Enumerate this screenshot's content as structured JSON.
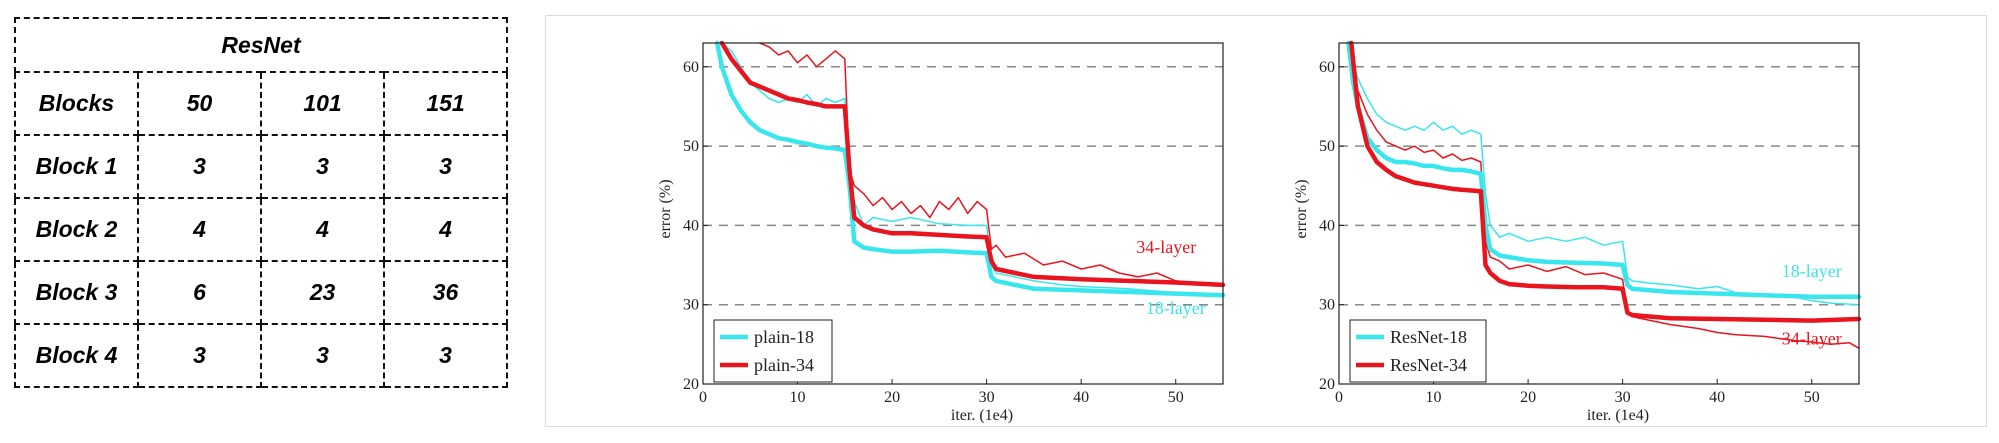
{
  "table": {
    "title": "ResNet",
    "header": [
      "Blocks",
      "50",
      "101",
      "151"
    ],
    "rows": [
      [
        "Block 1",
        "3",
        "3",
        "3"
      ],
      [
        "Block 2",
        "4",
        "4",
        "4"
      ],
      [
        "Block 3",
        "6",
        "23",
        "36"
      ],
      [
        "Block 4",
        "3",
        "3",
        "3"
      ]
    ]
  },
  "chart_data": [
    {
      "type": "line",
      "xlabel": "iter. (1e4)",
      "ylabel": "error (%)",
      "xlim": [
        0,
        55
      ],
      "ylim": [
        20,
        63
      ],
      "xticks": [
        0,
        10,
        20,
        30,
        40,
        50
      ],
      "yticks": [
        20,
        30,
        40,
        50,
        60
      ],
      "grid": "dashed horizontal at 30, 40, 50, 60",
      "legend_position": "bottom-left",
      "annotations": [
        {
          "text": "34-layer",
          "x": 49,
          "y": 36.5,
          "color": "#e8141e"
        },
        {
          "text": "18-layer",
          "x": 50,
          "y": 28.8,
          "color": "#39e6ee"
        }
      ],
      "series": [
        {
          "name": "plain-18",
          "color": "#39e6ee",
          "style": "thick",
          "x": [
            1.5,
            2,
            3,
            4,
            5,
            6,
            7,
            8,
            9,
            10,
            11,
            12,
            13,
            14,
            15,
            15.5,
            16,
            17,
            18,
            20,
            22,
            25,
            28,
            30,
            30.5,
            31,
            33,
            35,
            40,
            45,
            50,
            55
          ],
          "y": [
            63,
            60,
            56.5,
            54.5,
            53,
            52,
            51.5,
            51,
            50.8,
            50.5,
            50.3,
            50,
            49.8,
            49.7,
            49.5,
            45,
            38,
            37.2,
            37,
            36.7,
            36.7,
            36.8,
            36.6,
            36.5,
            33.5,
            33,
            32.5,
            32,
            31.8,
            31.6,
            31.4,
            31.2
          ]
        },
        {
          "name": "plain-34",
          "color": "#e8141e",
          "style": "thick",
          "x": [
            2,
            3,
            4,
            5,
            6,
            7,
            8,
            9,
            10,
            11,
            12,
            13,
            14,
            15,
            15.5,
            16,
            17,
            18,
            20,
            22,
            25,
            28,
            30,
            30.5,
            31,
            33,
            35,
            40,
            45,
            50,
            55
          ],
          "y": [
            63,
            61,
            59.5,
            58,
            57.5,
            57,
            56.5,
            56,
            55.8,
            55.5,
            55.3,
            55,
            55,
            55,
            47,
            41,
            40,
            39.5,
            39,
            39,
            38.8,
            38.6,
            38.5,
            35.5,
            34.5,
            34,
            33.5,
            33.2,
            33,
            32.8,
            32.5
          ]
        },
        {
          "name": "",
          "color": "#39e6ee",
          "style": "thin",
          "x": [
            2,
            3,
            4,
            5,
            6,
            7,
            8,
            9,
            10,
            11,
            12,
            13,
            14,
            15,
            15.5,
            16,
            17,
            18,
            20,
            22,
            25,
            28,
            30,
            30.5,
            31,
            33,
            35,
            38,
            40,
            45,
            50,
            55
          ],
          "y": [
            63,
            62,
            60,
            58,
            57,
            56,
            55.5,
            56,
            55.5,
            56.5,
            55,
            56,
            55.5,
            56,
            45,
            43,
            40,
            41,
            40.5,
            41,
            40.2,
            40,
            40,
            35,
            34,
            33.5,
            33,
            32.5,
            32.3,
            32,
            31.5,
            31
          ]
        },
        {
          "name": "",
          "color": "#e8141e",
          "style": "thin",
          "x": [
            6,
            7,
            8,
            9,
            10,
            11,
            12,
            13,
            14,
            15,
            15.5,
            16,
            17,
            18,
            19,
            20,
            21,
            22,
            23,
            24,
            25,
            26,
            27,
            28,
            29,
            30,
            30.5,
            31,
            32,
            34,
            36,
            38,
            40,
            42,
            44,
            46,
            48,
            50,
            52,
            55
          ],
          "y": [
            63,
            62.5,
            61.5,
            62,
            60.5,
            61.5,
            60,
            61,
            62,
            61,
            47,
            45,
            44,
            42.5,
            43.5,
            42,
            43,
            41.5,
            42.5,
            41,
            43,
            42,
            43.5,
            41.5,
            43,
            42,
            37,
            37.5,
            36,
            36.5,
            35,
            35.5,
            34.5,
            35,
            34,
            33.5,
            34,
            33,
            32.8,
            32.5
          ]
        }
      ]
    },
    {
      "type": "line",
      "xlabel": "iter. (1e4)",
      "ylabel": "error (%)",
      "xlim": [
        0,
        55
      ],
      "ylim": [
        20,
        63
      ],
      "xticks": [
        0,
        10,
        20,
        30,
        40,
        50
      ],
      "yticks": [
        20,
        30,
        40,
        50,
        60
      ],
      "grid": "dashed horizontal at 30, 40, 50, 60",
      "legend_position": "bottom-left",
      "annotations": [
        {
          "text": "18-layer",
          "x": 50,
          "y": 33.5,
          "color": "#39e6ee"
        },
        {
          "text": "34-layer",
          "x": 50,
          "y": 25,
          "color": "#e8141e"
        }
      ],
      "series": [
        {
          "name": "ResNet-18",
          "color": "#39e6ee",
          "style": "thick",
          "x": [
            1,
            1.5,
            2,
            3,
            4,
            5,
            6,
            7,
            8,
            9,
            10,
            11,
            12,
            13,
            14,
            15,
            15.5,
            16,
            17,
            18,
            20,
            22,
            25,
            28,
            30,
            30.5,
            31,
            33,
            35,
            40,
            45,
            50,
            55
          ],
          "y": [
            63,
            58,
            55,
            51,
            49.5,
            48.5,
            48,
            48,
            47.8,
            47.5,
            47.5,
            47.2,
            47,
            47,
            46.8,
            46.5,
            40,
            37,
            36.2,
            36,
            35.6,
            35.4,
            35.3,
            35.2,
            35,
            32.5,
            32,
            31.8,
            31.6,
            31.4,
            31.2,
            31,
            31
          ]
        },
        {
          "name": "ResNet-34",
          "color": "#e8141e",
          "style": "thick",
          "x": [
            1.3,
            2,
            3,
            4,
            5,
            6,
            7,
            8,
            9,
            10,
            11,
            12,
            13,
            14,
            15,
            15.5,
            16,
            17,
            18,
            20,
            22,
            25,
            28,
            30,
            30.5,
            31,
            33,
            35,
            40,
            45,
            50,
            55
          ],
          "y": [
            63,
            55,
            50,
            48,
            47,
            46.2,
            45.8,
            45.4,
            45.2,
            45,
            44.8,
            44.6,
            44.5,
            44.4,
            44.3,
            35,
            34,
            33,
            32.6,
            32.4,
            32.3,
            32.2,
            32.2,
            32,
            29,
            28.7,
            28.5,
            28.3,
            28.2,
            28.1,
            28,
            28.2
          ]
        },
        {
          "name": "",
          "color": "#39e6ee",
          "style": "thin",
          "x": [
            1,
            2,
            3,
            4,
            5,
            6,
            7,
            8,
            9,
            10,
            11,
            12,
            13,
            14,
            15,
            15.5,
            16,
            17,
            18,
            20,
            22,
            24,
            26,
            28,
            30,
            30.5,
            31,
            33,
            35,
            38,
            40,
            42,
            45,
            48,
            50,
            52,
            55
          ],
          "y": [
            63,
            58.5,
            56,
            54,
            53,
            52.5,
            52,
            52.5,
            52,
            53,
            52,
            52.5,
            51.5,
            52,
            51.5,
            44,
            40,
            38.5,
            39,
            38,
            38.5,
            38,
            38.5,
            37.5,
            38,
            33.5,
            33,
            32.7,
            32.5,
            32,
            32.3,
            31.5,
            31.3,
            31,
            30.5,
            30.2,
            30
          ]
        },
        {
          "name": "",
          "color": "#e8141e",
          "style": "thin",
          "x": [
            1,
            2,
            3,
            4,
            5,
            6,
            7,
            8,
            9,
            10,
            11,
            12,
            13,
            14,
            15,
            15.5,
            16,
            17,
            18,
            20,
            22,
            24,
            26,
            28,
            30,
            30.5,
            31,
            33,
            35,
            38,
            40,
            42,
            45,
            48,
            50,
            52,
            54,
            55
          ],
          "y": [
            63,
            57,
            54,
            52,
            50.5,
            50,
            49.5,
            50,
            49.2,
            49.5,
            48.5,
            49,
            48.2,
            48.5,
            48,
            38,
            36,
            35.5,
            34.5,
            35,
            34.2,
            34.8,
            33.8,
            34,
            33.2,
            29,
            28.5,
            28,
            27.5,
            27,
            26.5,
            26.2,
            26,
            25.5,
            25.3,
            25,
            25.2,
            24.5
          ]
        }
      ]
    }
  ]
}
